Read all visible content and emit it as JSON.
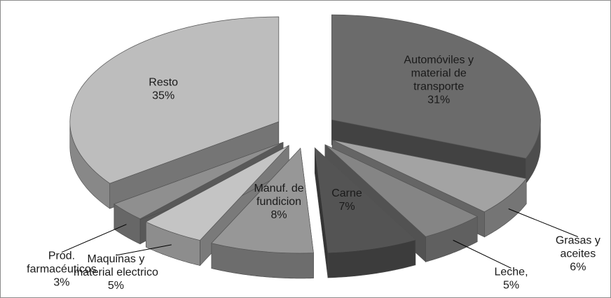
{
  "chart_data": {
    "type": "pie",
    "title": "",
    "style": "3d-exploded",
    "slices": [
      {
        "label": "Automóviles y material de transporte",
        "label_lines": [
          "Automóviles y",
          "material de",
          "transporte"
        ],
        "value": 31,
        "value_text": "31%",
        "color": "#6b6b6b"
      },
      {
        "label": "Grasas y aceites",
        "label_lines": [
          "Grasas y",
          "aceites"
        ],
        "value": 6,
        "value_text": "6%",
        "color": "#a3a3a3"
      },
      {
        "label": "Leche,",
        "label_lines": [
          "Leche,"
        ],
        "value": 5,
        "value_text": "5%",
        "color": "#858585"
      },
      {
        "label": "Carne",
        "label_lines": [
          "Carne"
        ],
        "value": 7,
        "value_text": "7%",
        "color": "#545454"
      },
      {
        "label": "Manuf. de fundicion",
        "label_lines": [
          "Manuf. de",
          "fundicion"
        ],
        "value": 8,
        "value_text": "8%",
        "color": "#979797"
      },
      {
        "label": "Maquinas y material electrico",
        "label_lines": [
          "Maquinas y",
          "material electrico"
        ],
        "value": 5,
        "value_text": "5%",
        "color": "#c4c4c4"
      },
      {
        "label": "Prod. farmacéuticos",
        "label_lines": [
          "Prod.",
          "farmacéuticos"
        ],
        "value": 3,
        "value_text": "3%",
        "color": "#8f8f8f"
      },
      {
        "label": "Resto",
        "label_lines": [
          "Resto"
        ],
        "value": 35,
        "value_text": "35%",
        "color": "#bdbdbd"
      }
    ]
  }
}
